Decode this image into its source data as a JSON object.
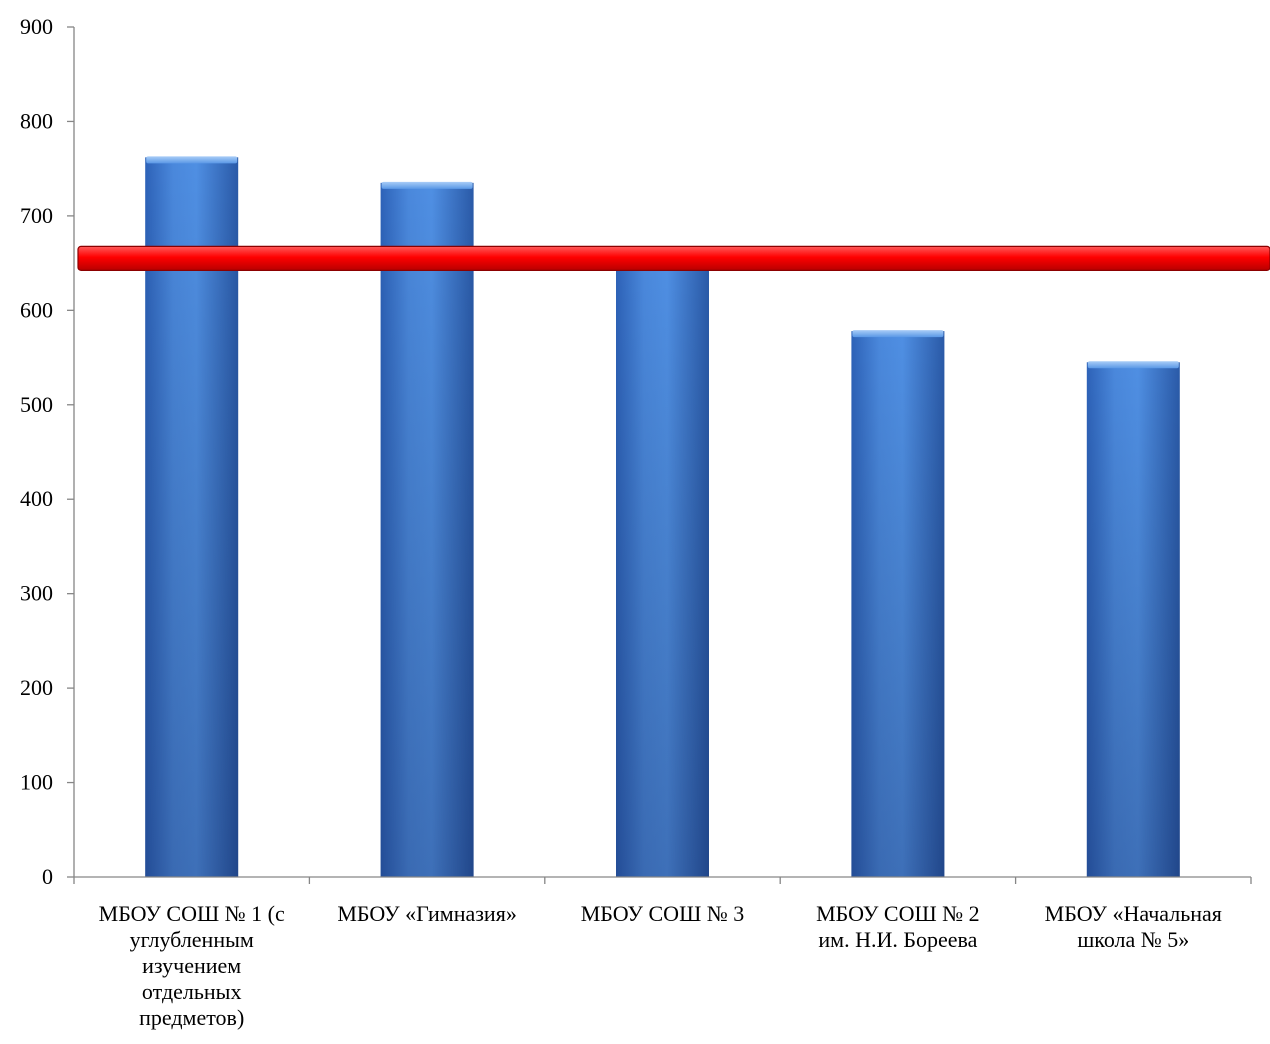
{
  "chart_data": {
    "type": "bar",
    "title": "",
    "xlabel": "",
    "ylabel": "",
    "ylim": [
      0,
      900
    ],
    "yticks": [
      "0",
      "100",
      "200",
      "300",
      "400",
      "500",
      "600",
      "700",
      "800",
      "900"
    ],
    "grid": false,
    "categories": [
      [
        "МБОУ СОШ № 1 (с",
        "углубленным",
        "изучением",
        "отдельных",
        "предметов)"
      ],
      [
        "МБОУ «Гимназия»"
      ],
      [
        "МБОУ СОШ № 3"
      ],
      [
        "МБОУ СОШ № 2",
        "им. Н.И. Бореева"
      ],
      [
        "МБОУ «Начальная",
        "школа № 5»"
      ]
    ],
    "values": [
      762,
      735,
      655,
      578,
      545
    ],
    "reference_line": {
      "value": 655
    },
    "colors": {
      "bar_light": "#4f8fe3",
      "bar_mid": "#3b76cf",
      "bar_dark": "#2453a3",
      "reference_line": "#e00000",
      "axis": "#868686"
    }
  }
}
